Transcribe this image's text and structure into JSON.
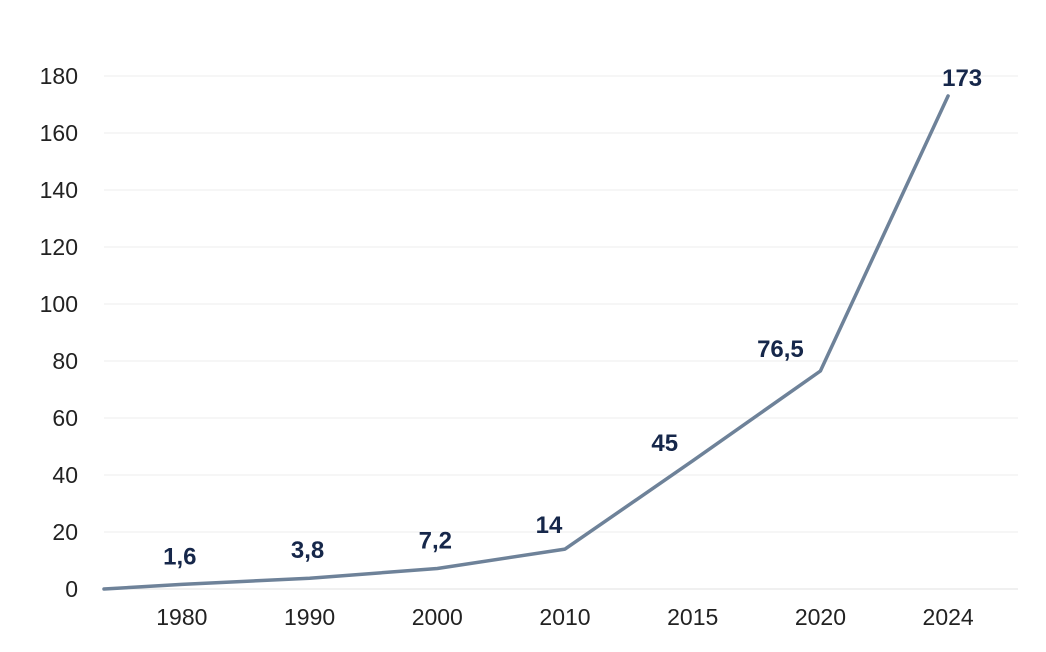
{
  "chart_data": {
    "type": "line",
    "title": "",
    "xlabel": "",
    "ylabel": "",
    "categories": [
      "1980",
      "1990",
      "2000",
      "2010",
      "2015",
      "2020",
      "2024"
    ],
    "values": [
      1.6,
      3.8,
      7.2,
      14,
      45,
      76.5,
      173
    ],
    "data_labels": [
      "1,6",
      "3,8",
      "7,2",
      "14",
      "45",
      "76,5",
      "173"
    ],
    "yticks": [
      0,
      20,
      40,
      60,
      80,
      100,
      120,
      140,
      160,
      180
    ],
    "ylim": [
      0,
      180
    ],
    "grid": true,
    "legend": "none",
    "line_color": "#6e8299",
    "label_color": "#16274a"
  }
}
